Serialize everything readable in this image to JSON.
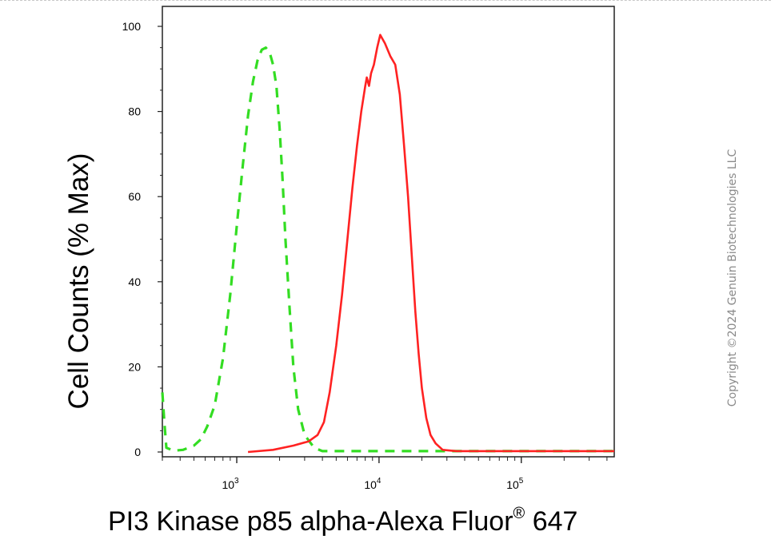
{
  "chart_data": {
    "type": "line",
    "xlabel": "PI3 Kinase p85 alpha-Alexa Fluor",
    "xlabel_sup": "®",
    "xlabel_suffix": " 647",
    "ylabel": "Cell Counts (% Max)",
    "x_scale": "log",
    "xlim": [
      300,
      450000
    ],
    "ylim": [
      0,
      100
    ],
    "y_ticks": [
      0,
      20,
      40,
      60,
      80,
      100
    ],
    "x_ticks": [
      {
        "value": 1000,
        "base": "10",
        "exp": "3"
      },
      {
        "value": 10000,
        "base": "10",
        "exp": "4"
      },
      {
        "value": 100000,
        "base": "10",
        "exp": "5"
      }
    ],
    "grid": false,
    "series": [
      {
        "color": "#33dd22",
        "style": "dashed",
        "points": [
          [
            300,
            14
          ],
          [
            310,
            7
          ],
          [
            320,
            1
          ],
          [
            360,
            0.3
          ],
          [
            420,
            0.5
          ],
          [
            500,
            1.5
          ],
          [
            560,
            3
          ],
          [
            620,
            6
          ],
          [
            700,
            11
          ],
          [
            800,
            22
          ],
          [
            900,
            37
          ],
          [
            1000,
            53
          ],
          [
            1100,
            67
          ],
          [
            1200,
            79
          ],
          [
            1300,
            87
          ],
          [
            1400,
            92
          ],
          [
            1500,
            94.5
          ],
          [
            1600,
            95
          ],
          [
            1700,
            94
          ],
          [
            1800,
            91
          ],
          [
            1900,
            86
          ],
          [
            2000,
            76
          ],
          [
            2100,
            64
          ],
          [
            2200,
            50
          ],
          [
            2350,
            34
          ],
          [
            2500,
            20
          ],
          [
            2700,
            10
          ],
          [
            3000,
            4
          ],
          [
            3500,
            1
          ],
          [
            4000,
            0.2
          ],
          [
            30000,
            0.2
          ],
          [
            450000,
            0.2
          ]
        ]
      },
      {
        "color": "#ff2222",
        "style": "solid",
        "points": [
          [
            1200,
            0
          ],
          [
            1800,
            0.5
          ],
          [
            2500,
            1.5
          ],
          [
            3200,
            2.5
          ],
          [
            3700,
            4
          ],
          [
            4100,
            7
          ],
          [
            4500,
            14
          ],
          [
            5000,
            25
          ],
          [
            5500,
            37
          ],
          [
            6000,
            50
          ],
          [
            6500,
            62
          ],
          [
            7000,
            72
          ],
          [
            7500,
            80
          ],
          [
            8000,
            86
          ],
          [
            8200,
            88
          ],
          [
            8500,
            86
          ],
          [
            8800,
            89
          ],
          [
            9200,
            91
          ],
          [
            9700,
            95
          ],
          [
            10200,
            98
          ],
          [
            11000,
            96
          ],
          [
            12000,
            93
          ],
          [
            13000,
            91
          ],
          [
            14000,
            84
          ],
          [
            15000,
            72
          ],
          [
            16000,
            60
          ],
          [
            17000,
            46
          ],
          [
            18000,
            33
          ],
          [
            19000,
            23
          ],
          [
            20000,
            15
          ],
          [
            21500,
            8
          ],
          [
            23000,
            4
          ],
          [
            25000,
            2
          ],
          [
            28000,
            0.5
          ],
          [
            35000,
            0.2
          ],
          [
            450000,
            0.2
          ]
        ]
      }
    ]
  },
  "watermark": "Copyright ©2024 Genuin Biotechnologies LLC"
}
